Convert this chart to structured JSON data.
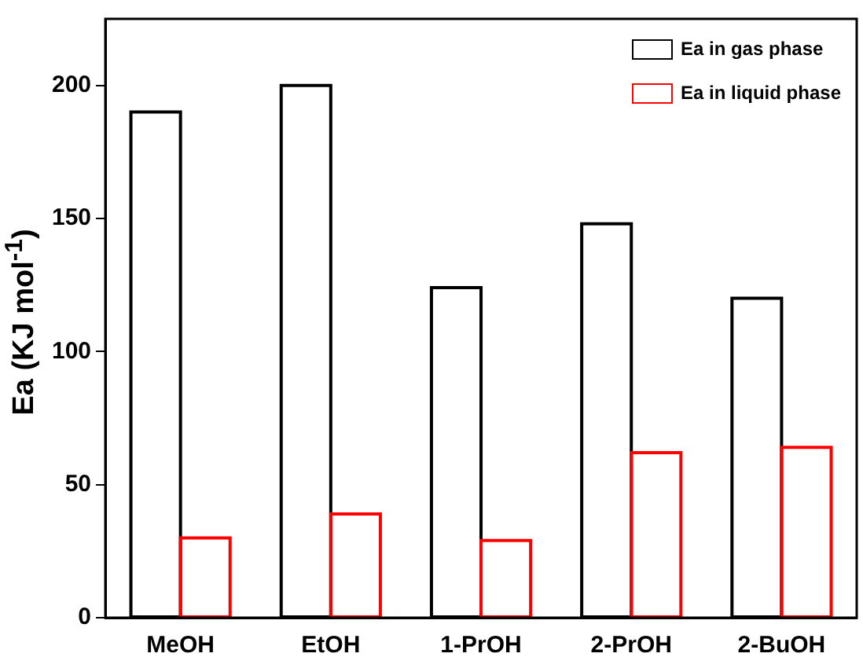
{
  "chart_data": {
    "type": "bar",
    "ylabel": "Ea (KJ mol$^{-1}$)",
    "categories": [
      "MeOH",
      "EtOH",
      "1-PrOH",
      "2-PrOH",
      "2-BuOH"
    ],
    "series": [
      {
        "name": "Ea in gas phase",
        "color": "#000000",
        "values": [
          190,
          200,
          124,
          148,
          120
        ]
      },
      {
        "name": "Ea in liquid phase",
        "color": "#ff0000",
        "values": [
          30,
          39,
          29,
          62,
          64
        ]
      }
    ],
    "ylim": [
      0,
      225
    ],
    "yticks": [
      0,
      50,
      100,
      150,
      200
    ],
    "grid": false,
    "legend": "top right"
  }
}
